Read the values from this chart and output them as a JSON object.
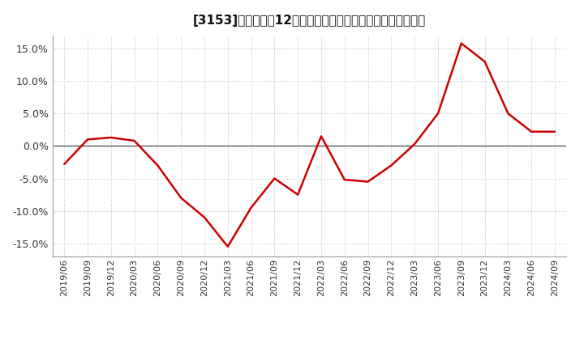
{
  "title": "[3153]　売上高の12か月移動合計の対前年同期増減率の推移",
  "line_color": "#cc0000",
  "background_color": "#ffffff",
  "plot_bg_color": "#ffffff",
  "grid_color": "#bbbbbb",
  "zero_line_color": "#333333",
  "ylim": [
    -0.17,
    0.17
  ],
  "yticks": [
    -0.15,
    -0.1,
    -0.05,
    0.0,
    0.05,
    0.1,
    0.15
  ],
  "dates": [
    "2019/06",
    "2019/09",
    "2019/12",
    "2020/03",
    "2020/06",
    "2020/09",
    "2020/12",
    "2021/03",
    "2021/06",
    "2021/09",
    "2021/12",
    "2022/03",
    "2022/06",
    "2022/09",
    "2022/12",
    "2023/03",
    "2023/06",
    "2023/09",
    "2023/12",
    "2024/03",
    "2024/06",
    "2024/09"
  ],
  "values": [
    -0.028,
    0.01,
    0.013,
    0.008,
    -0.03,
    -0.08,
    -0.11,
    -0.155,
    -0.095,
    -0.05,
    -0.075,
    0.015,
    -0.052,
    -0.055,
    -0.03,
    0.003,
    0.05,
    0.158,
    0.13,
    0.05,
    0.022,
    0.022
  ],
  "title_fontsize": 11,
  "tick_fontsize": 8,
  "ytick_fontsize": 9
}
